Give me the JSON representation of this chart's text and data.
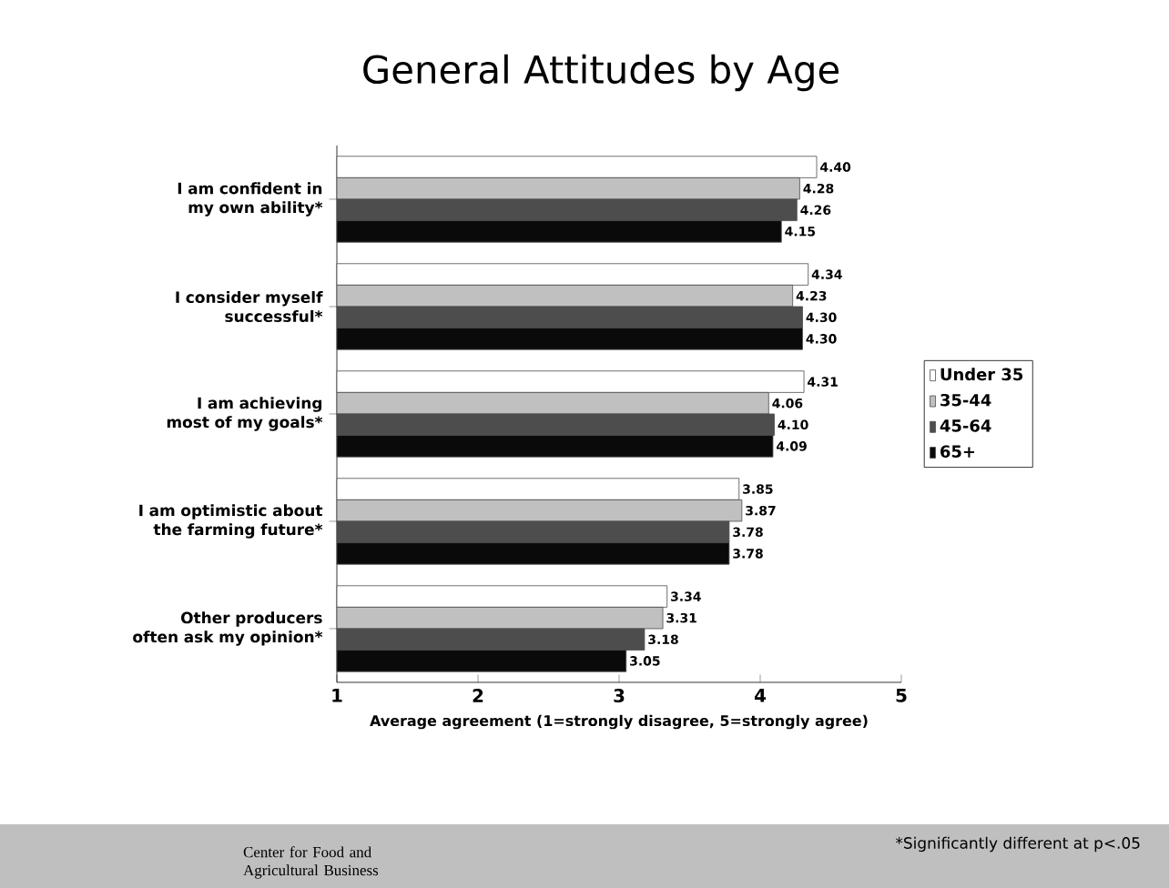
{
  "chart_data": {
    "type": "bar",
    "orientation": "horizontal",
    "title": "General Attitudes by Age",
    "xlabel": "Average agreement (1=strongly disagree, 5=strongly agree)",
    "categories": [
      "I am confident in my own ability*",
      "I consider myself successful*",
      "I am achieving most of my goals*",
      "I am optimistic about the farming future*",
      "Other producers often ask my opinion*"
    ],
    "series": [
      {
        "name": "Under 35",
        "color": "#ffffff",
        "values": [
          4.4,
          4.34,
          4.31,
          3.85,
          3.34
        ],
        "value_labels": [
          "4.40",
          "4.34",
          "4.31",
          "3.85",
          "3.34"
        ]
      },
      {
        "name": "35-44",
        "color": "#c0c0c0",
        "values": [
          4.28,
          4.23,
          4.06,
          3.87,
          3.31
        ],
        "value_labels": [
          "4.28",
          "4.23",
          "4.06",
          "3.87",
          "3.31"
        ]
      },
      {
        "name": "45-64",
        "color": "#4d4d4d",
        "values": [
          4.26,
          4.3,
          4.1,
          3.78,
          3.18
        ],
        "value_labels": [
          "4.26",
          "4.30",
          "4.10",
          "3.78",
          "3.18"
        ]
      },
      {
        "name": "65+",
        "color": "#0a0a0a",
        "values": [
          4.15,
          4.3,
          4.09,
          3.78,
          3.05
        ],
        "value_labels": [
          "4.15",
          "4.30",
          "4.09",
          "3.78",
          "3.05"
        ]
      }
    ],
    "xlim": [
      1,
      5
    ],
    "xticks": [
      1,
      2,
      3,
      4,
      5
    ],
    "legend": "right",
    "annotations": [
      "*Significantly different at p<.05",
      "Center for Food and Agricultural Business"
    ]
  }
}
